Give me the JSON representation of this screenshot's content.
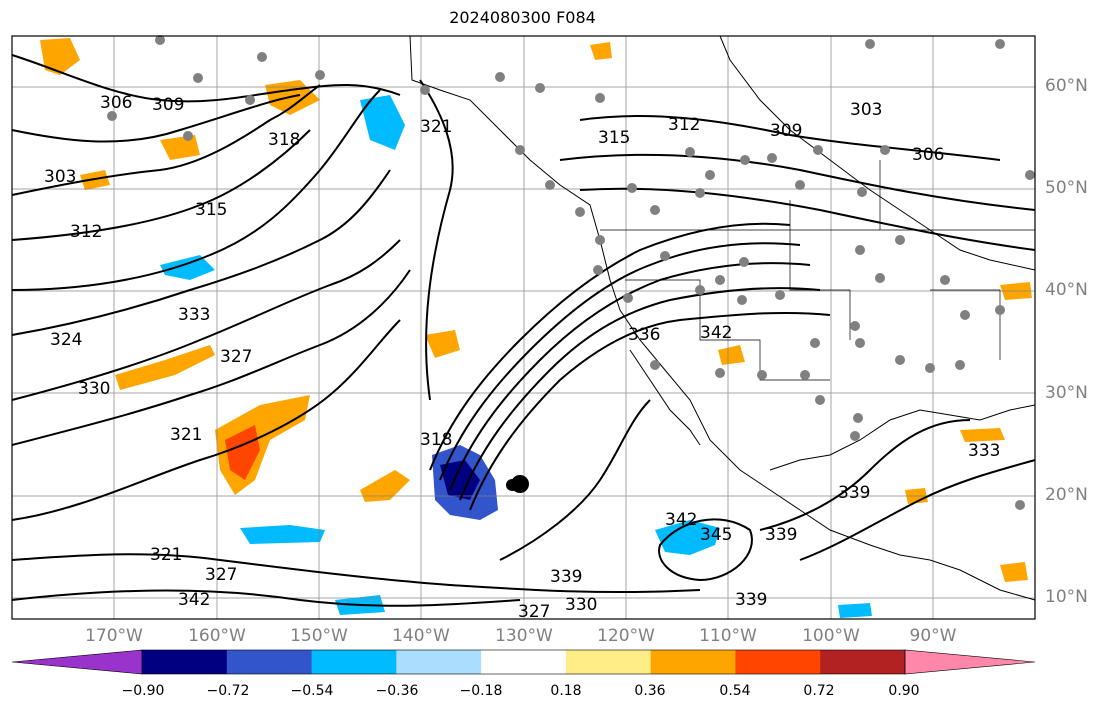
{
  "title": "2024080300 F084",
  "map": {
    "lon_range": [
      -180,
      -80
    ],
    "lat_range": [
      8,
      65
    ],
    "latitude_labels": [
      "60°N",
      "50°N",
      "40°N",
      "30°N",
      "20°N",
      "10°N"
    ],
    "longitude_labels": [
      "170°W",
      "160°W",
      "150°W",
      "140°W",
      "130°W",
      "120°W",
      "110°W",
      "100°W",
      "90°W"
    ],
    "gridlines": true,
    "contour_labels": [
      "306",
      "309",
      "303",
      "312",
      "315",
      "318",
      "321",
      "324",
      "327",
      "330",
      "333",
      "336",
      "339",
      "342",
      "345"
    ],
    "colors": {
      "contour": "#000000",
      "gridline": "#808080",
      "label": "#808080",
      "station_marker": "#808080",
      "storm_marker": "#000000"
    }
  },
  "colorbar": {
    "tick_labels": [
      "−0.90",
      "−0.72",
      "−0.54",
      "−0.36",
      "−0.18",
      "0.18",
      "0.36",
      "0.54",
      "0.72",
      "0.90"
    ],
    "colors": [
      "#9933cc",
      "#000080",
      "#3355cc",
      "#00bbff",
      "#aaddff",
      "#ffffff",
      "#ffee88",
      "#ffa500",
      "#ff4500",
      "#b22222",
      "#ff88aa"
    ]
  }
}
